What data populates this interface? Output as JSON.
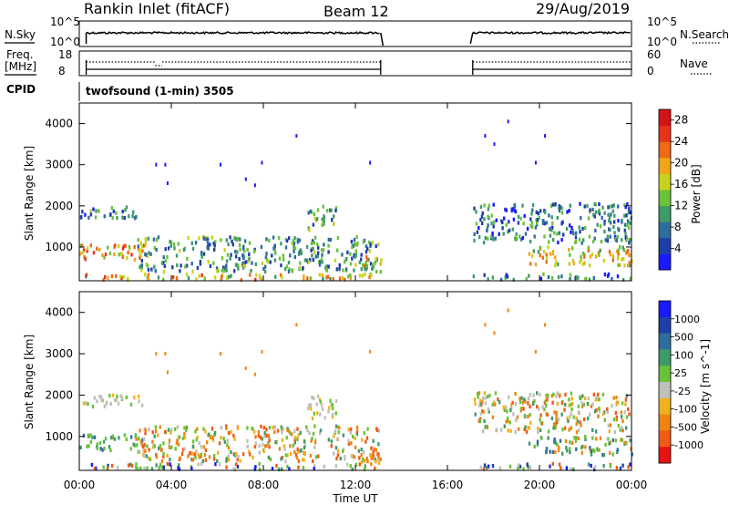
{
  "header": {
    "station": "Rankin Inlet (fitACF)",
    "beam": "Beam 12",
    "date": "29/Aug/2019"
  },
  "side_labels": {
    "nsky": "N.Sky",
    "nsearch": "N.Search",
    "freq": "Freq.",
    "freq_unit": "[MHz]",
    "nave": "Nave",
    "cpid": "CPID",
    "program": "twofsound (1-min) 3505"
  },
  "top_axes": {
    "noise_ticks": [
      "10^5",
      "10^0"
    ],
    "noise_right_ticks": [
      "10^5",
      "10^0"
    ],
    "freq_ticks": [
      "18",
      "8"
    ],
    "nave_ticks": [
      "60",
      "0"
    ]
  },
  "colors": {
    "power_scale": [
      "#1a1aff",
      "#1f3fa8",
      "#2e6e9e",
      "#3f9a6a",
      "#6ac23a",
      "#c8d21e",
      "#f2a51a",
      "#ef6a14",
      "#e8341a",
      "#d41414"
    ],
    "velocity_scale": [
      "#1a1aff",
      "#1f3fa8",
      "#2e6e9e",
      "#3f9a6a",
      "#6ac23a",
      "#c0c0b8",
      "#f0b020",
      "#ef8414",
      "#ef5a14",
      "#e81414"
    ],
    "ground_scatter": "#8a8a8a"
  },
  "chart_data": [
    {
      "type": "heatmap",
      "name": "power",
      "xlabel": "",
      "ylabel": "Slant Range [km]",
      "x_ticks": [
        "00:00",
        "04:00",
        "08:00",
        "12:00",
        "16:00",
        "20:00",
        "00:00"
      ],
      "y_ticks": [
        "1000",
        "2000",
        "3000",
        "4000"
      ],
      "xlim_hours": [
        0,
        24
      ],
      "ylim_km": [
        180,
        4500
      ],
      "colorbar_label": "Power [dB]",
      "colorbar_ticks": [
        "4",
        "8",
        "12",
        "16",
        "20",
        "24",
        "28"
      ],
      "colorbar_range": [
        0,
        30
      ],
      "data_gap_hours": [
        13.2,
        17.0
      ],
      "scatter_regions": [
        {
          "t0": 0.0,
          "t1": 13.1,
          "r0": 200,
          "r1": 340,
          "mean_value": 18
        },
        {
          "t0": 0.0,
          "t1": 2.8,
          "r0": 650,
          "r1": 1050,
          "mean_value": 20
        },
        {
          "t0": 0.0,
          "t1": 2.7,
          "r0": 1700,
          "r1": 2000,
          "mean_value": 9
        },
        {
          "t0": 2.5,
          "t1": 13.0,
          "r0": 400,
          "r1": 1250,
          "mean_value": 10
        },
        {
          "t0": 12.2,
          "t1": 13.1,
          "r0": 300,
          "r1": 800,
          "mean_value": 16
        },
        {
          "t0": 9.9,
          "t1": 11.2,
          "r0": 1400,
          "r1": 2000,
          "mean_value": 10
        },
        {
          "t0": 17.0,
          "t1": 24.0,
          "r0": 200,
          "r1": 340,
          "mean_value": 8
        },
        {
          "t0": 17.1,
          "t1": 24.0,
          "r0": 1100,
          "r1": 2050,
          "mean_value": 8
        },
        {
          "t0": 19.5,
          "t1": 24.0,
          "r0": 550,
          "r1": 1000,
          "mean_value": 17
        }
      ],
      "isolated_points": [
        {
          "t": 3.3,
          "r": 3000
        },
        {
          "t": 3.7,
          "r": 3000
        },
        {
          "t": 6.1,
          "r": 3000
        },
        {
          "t": 7.9,
          "r": 3050
        },
        {
          "t": 9.4,
          "r": 3700
        },
        {
          "t": 12.6,
          "r": 3050
        },
        {
          "t": 17.6,
          "r": 3700
        },
        {
          "t": 18.0,
          "r": 3500
        },
        {
          "t": 18.6,
          "r": 4050
        },
        {
          "t": 19.8,
          "r": 3050
        },
        {
          "t": 20.2,
          "r": 3700
        },
        {
          "t": 7.2,
          "r": 2650
        },
        {
          "t": 7.6,
          "r": 2500
        },
        {
          "t": 3.8,
          "r": 2550
        },
        {
          "t": 9.0,
          "r": 1150
        }
      ]
    },
    {
      "type": "heatmap",
      "name": "velocity",
      "xlabel": "Time UT",
      "ylabel": "Slant Range [km]",
      "x_ticks": [
        "00:00",
        "04:00",
        "08:00",
        "12:00",
        "16:00",
        "20:00",
        "00:00"
      ],
      "y_ticks": [
        "1000",
        "2000",
        "3000",
        "4000"
      ],
      "xlim_hours": [
        0,
        24
      ],
      "ylim_km": [
        180,
        4500
      ],
      "colorbar_label": "Velocity [m s^-1]",
      "colorbar_ticks": [
        "1000",
        "500",
        "100",
        "25",
        "-25",
        "-100",
        "-500",
        "-1000"
      ],
      "data_gap_hours": [
        13.2,
        17.0
      ],
      "scatter_regions": [
        {
          "t0": 0.0,
          "t1": 13.1,
          "r0": 200,
          "r1": 340,
          "class": "ground"
        },
        {
          "t0": 0.0,
          "t1": 2.8,
          "r0": 650,
          "r1": 1050,
          "class": "positive"
        },
        {
          "t0": 0.0,
          "t1": 2.7,
          "r0": 1700,
          "r1": 2000,
          "class": "near_zero"
        },
        {
          "t0": 2.5,
          "t1": 13.0,
          "r0": 400,
          "r1": 1250,
          "class": "mixed"
        },
        {
          "t0": 12.2,
          "t1": 13.1,
          "r0": 300,
          "r1": 800,
          "class": "negative"
        },
        {
          "t0": 9.9,
          "t1": 11.2,
          "r0": 1400,
          "r1": 2000,
          "class": "near_zero"
        },
        {
          "t0": 17.0,
          "t1": 24.0,
          "r0": 200,
          "r1": 340,
          "class": "ground"
        },
        {
          "t0": 17.1,
          "t1": 24.0,
          "r0": 1100,
          "r1": 2050,
          "class": "mixed"
        },
        {
          "t0": 19.5,
          "t1": 24.0,
          "r0": 550,
          "r1": 1000,
          "class": "positive"
        }
      ]
    }
  ]
}
